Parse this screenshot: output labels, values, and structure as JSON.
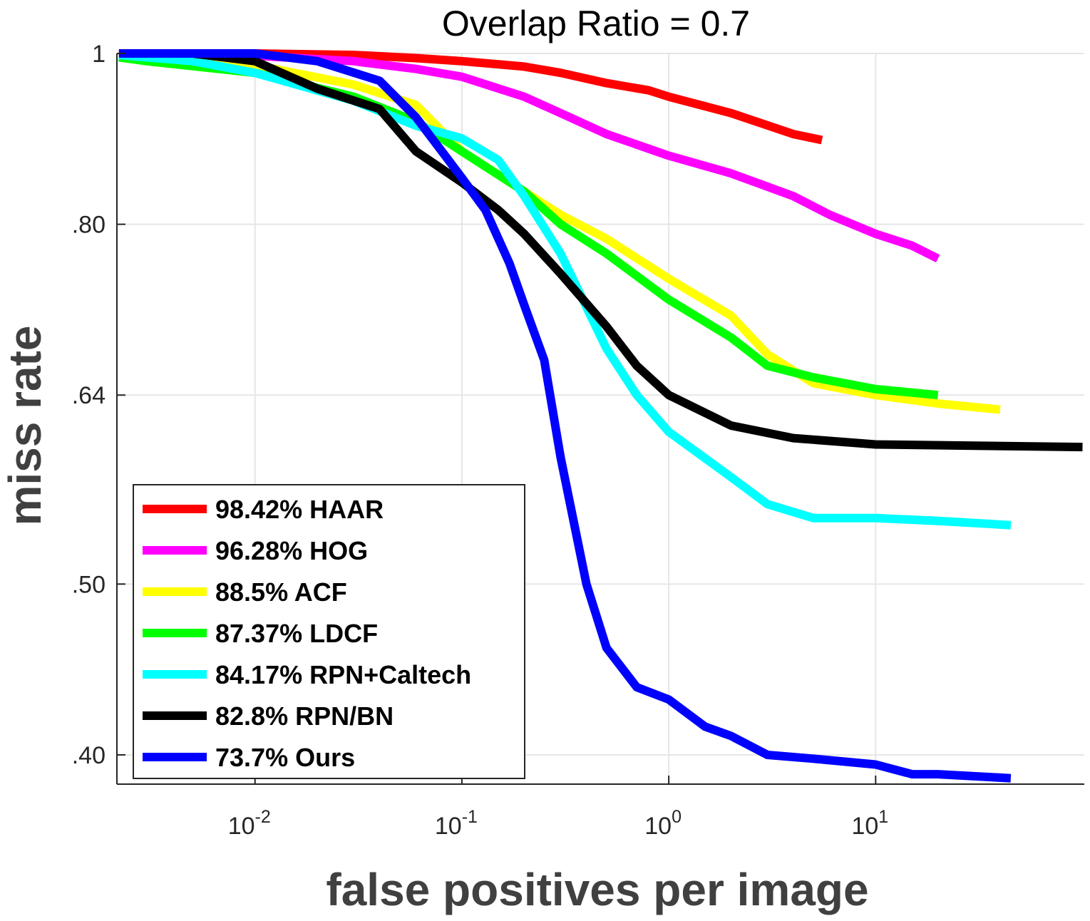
{
  "chart_data": {
    "type": "line",
    "title": "Overlap Ratio = 0.7",
    "xlabel": "false positives per image",
    "ylabel": "miss rate",
    "xscale": "log",
    "yscale": "log",
    "xlim": [
      0.00215,
      102
    ],
    "ylim": [
      0.385,
      1.0
    ],
    "xticks": [
      {
        "value": 0.01,
        "base": "10",
        "exp": "-2"
      },
      {
        "value": 0.1,
        "base": "10",
        "exp": "-1"
      },
      {
        "value": 1,
        "base": "10",
        "exp": "0"
      },
      {
        "value": 10,
        "base": "10",
        "exp": "1"
      }
    ],
    "yticks": [
      {
        "value": 1.0,
        "label": "1"
      },
      {
        "value": 0.8,
        "label": ".80"
      },
      {
        "value": 0.64,
        "label": ".64"
      },
      {
        "value": 0.5,
        "label": ".50"
      },
      {
        "value": 0.4,
        "label": ".40"
      }
    ],
    "grid": true,
    "legend_position": "bottom-left",
    "series": [
      {
        "name": "98.42% HAAR",
        "color": "#ff0000",
        "x": [
          0.0022,
          0.01,
          0.03,
          0.06,
          0.1,
          0.2,
          0.3,
          0.5,
          0.8,
          1.0,
          2.0,
          4.0,
          5.5
        ],
        "y": [
          1.0,
          1.0,
          0.998,
          0.994,
          0.99,
          0.983,
          0.975,
          0.962,
          0.953,
          0.945,
          0.925,
          0.9,
          0.893
        ]
      },
      {
        "name": "96.28% HOG",
        "color": "#ff00ff",
        "x": [
          0.0022,
          0.01,
          0.03,
          0.06,
          0.1,
          0.2,
          0.3,
          0.5,
          1.0,
          2.0,
          4.0,
          6.0,
          10,
          15,
          20
        ],
        "y": [
          0.998,
          0.997,
          0.99,
          0.98,
          0.97,
          0.945,
          0.925,
          0.9,
          0.875,
          0.855,
          0.83,
          0.81,
          0.79,
          0.778,
          0.765
        ]
      },
      {
        "name": "88.5% ACF",
        "color": "#ffff00",
        "x": [
          0.0022,
          0.01,
          0.03,
          0.06,
          0.1,
          0.2,
          0.3,
          0.5,
          1.0,
          2.0,
          3.0,
          5.0,
          10,
          20,
          40
        ],
        "y": [
          0.998,
          0.985,
          0.96,
          0.935,
          0.88,
          0.835,
          0.81,
          0.785,
          0.745,
          0.71,
          0.675,
          0.65,
          0.64,
          0.633,
          0.628
        ]
      },
      {
        "name": "87.37% LDCF",
        "color": "#00ff00",
        "x": [
          0.0022,
          0.003,
          0.01,
          0.03,
          0.06,
          0.1,
          0.2,
          0.3,
          0.5,
          1.0,
          2.0,
          3.0,
          5.0,
          10,
          20
        ],
        "y": [
          0.995,
          0.99,
          0.975,
          0.945,
          0.915,
          0.88,
          0.835,
          0.8,
          0.77,
          0.725,
          0.69,
          0.665,
          0.655,
          0.645,
          0.64
        ]
      },
      {
        "name": "84.17% RPN+Caltech",
        "color": "#00ffff",
        "x": [
          0.0022,
          0.005,
          0.01,
          0.03,
          0.06,
          0.1,
          0.15,
          0.2,
          0.3,
          0.5,
          0.7,
          1.0,
          2.0,
          3.0,
          5.0,
          10,
          20,
          45
        ],
        "y": [
          0.998,
          0.99,
          0.975,
          0.94,
          0.91,
          0.895,
          0.87,
          0.83,
          0.77,
          0.68,
          0.64,
          0.61,
          0.575,
          0.555,
          0.545,
          0.545,
          0.543,
          0.54
        ]
      },
      {
        "name": "82.8% RPN/BN",
        "color": "#000000",
        "x": [
          0.0022,
          0.005,
          0.01,
          0.02,
          0.04,
          0.06,
          0.1,
          0.15,
          0.2,
          0.3,
          0.5,
          0.7,
          1.0,
          2.0,
          4.0,
          10,
          30,
          100
        ],
        "y": [
          1.0,
          1.0,
          0.99,
          0.955,
          0.93,
          0.88,
          0.845,
          0.815,
          0.79,
          0.75,
          0.7,
          0.665,
          0.64,
          0.615,
          0.605,
          0.6,
          0.599,
          0.598
        ]
      },
      {
        "name": "73.7% Ours",
        "color": "#0000ff",
        "x": [
          0.0022,
          0.01,
          0.02,
          0.04,
          0.06,
          0.08,
          0.1,
          0.13,
          0.17,
          0.2,
          0.25,
          0.3,
          0.4,
          0.5,
          0.7,
          1.0,
          1.5,
          2.0,
          3.0,
          5.0,
          10,
          15,
          20,
          45
        ],
        "y": [
          1.0,
          1.0,
          0.99,
          0.965,
          0.92,
          0.88,
          0.85,
          0.815,
          0.76,
          0.72,
          0.67,
          0.59,
          0.5,
          0.46,
          0.437,
          0.43,
          0.415,
          0.41,
          0.4,
          0.398,
          0.395,
          0.39,
          0.39,
          0.388
        ]
      }
    ]
  }
}
